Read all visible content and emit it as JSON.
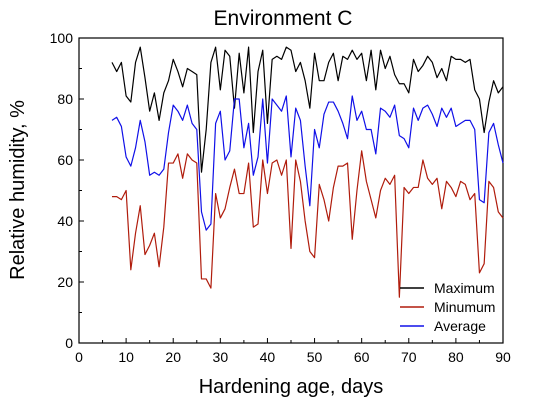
{
  "chart_data": {
    "type": "line",
    "title": "Environment C",
    "xlabel": "Hardening age, days",
    "ylabel": "Relative humidity, %",
    "xlim": [
      0,
      90
    ],
    "ylim": [
      0,
      100
    ],
    "xticks": [
      0,
      10,
      20,
      30,
      40,
      50,
      60,
      70,
      80,
      90
    ],
    "yticks": [
      0,
      20,
      40,
      60,
      80,
      100
    ],
    "legend_position": "bottom-right",
    "grid": false,
    "x": [
      7,
      8,
      9,
      10,
      11,
      12,
      13,
      14,
      15,
      16,
      17,
      18,
      19,
      20,
      21,
      22,
      23,
      24,
      25,
      26,
      27,
      28,
      29,
      30,
      31,
      32,
      33,
      34,
      35,
      36,
      37,
      38,
      39,
      40,
      41,
      42,
      43,
      44,
      45,
      46,
      47,
      48,
      49,
      50,
      51,
      52,
      53,
      54,
      55,
      56,
      57,
      58,
      59,
      60,
      61,
      62,
      63,
      64,
      65,
      66,
      67,
      68,
      69,
      70,
      71,
      72,
      73,
      74,
      75,
      76,
      77,
      78,
      79,
      80,
      81,
      82,
      83,
      84,
      85,
      86,
      87,
      88,
      89,
      90
    ],
    "series": [
      {
        "name": "Maximum",
        "color": "#000000",
        "values": [
          92,
          89,
          92,
          81,
          79,
          92,
          97,
          87,
          76,
          82,
          73,
          82,
          86,
          93,
          89,
          84,
          90,
          89,
          88,
          56,
          70,
          92,
          97,
          83,
          96,
          94,
          77,
          95,
          82,
          97,
          69,
          89,
          96,
          72,
          93,
          94,
          93,
          97,
          96,
          89,
          92,
          86,
          77,
          95,
          86,
          86,
          92,
          95,
          86,
          94,
          93,
          96,
          93,
          95,
          86,
          96,
          83,
          96,
          90,
          94,
          88,
          85,
          85,
          82,
          93,
          89,
          91,
          94,
          92,
          87,
          90,
          86,
          94,
          93,
          93,
          92,
          93,
          83,
          80,
          69,
          79,
          86,
          82,
          84
        ]
      },
      {
        "name": "Minumum",
        "color": "#b01c0c",
        "values": [
          48,
          48,
          47,
          50,
          24,
          36,
          45,
          29,
          32,
          36,
          25,
          38,
          59,
          59,
          62,
          54,
          62,
          60,
          59,
          21,
          21,
          18,
          49,
          41,
          44,
          51,
          57,
          49,
          49,
          59,
          38,
          39,
          60,
          49,
          59,
          60,
          55,
          60,
          31,
          60,
          53,
          40,
          30,
          28,
          52,
          47,
          40,
          51,
          58,
          58,
          59,
          34,
          50,
          63,
          53,
          47,
          41,
          50,
          54,
          52,
          55,
          15,
          51,
          49,
          51,
          51,
          60,
          54,
          52,
          54,
          44,
          53,
          51,
          48,
          53,
          52,
          47,
          49,
          23,
          26,
          53,
          51,
          43,
          41
        ]
      },
      {
        "name": "Average",
        "color": "#1010e8",
        "values": [
          73,
          74,
          71,
          61,
          58,
          64,
          73,
          66,
          55,
          56,
          55,
          57,
          69,
          78,
          76,
          73,
          78,
          72,
          70,
          43,
          37,
          39,
          72,
          76,
          60,
          63,
          80,
          80,
          64,
          72,
          55,
          61,
          80,
          59,
          80,
          78,
          76,
          81,
          61,
          77,
          73,
          58,
          45,
          70,
          64,
          75,
          79,
          79,
          76,
          72,
          67,
          81,
          73,
          76,
          70,
          70,
          62,
          77,
          76,
          74,
          78,
          68,
          67,
          64,
          77,
          73,
          77,
          78,
          75,
          71,
          77,
          74,
          77,
          71,
          72,
          73,
          73,
          70,
          47,
          46,
          69,
          72,
          65,
          59
        ]
      }
    ]
  }
}
